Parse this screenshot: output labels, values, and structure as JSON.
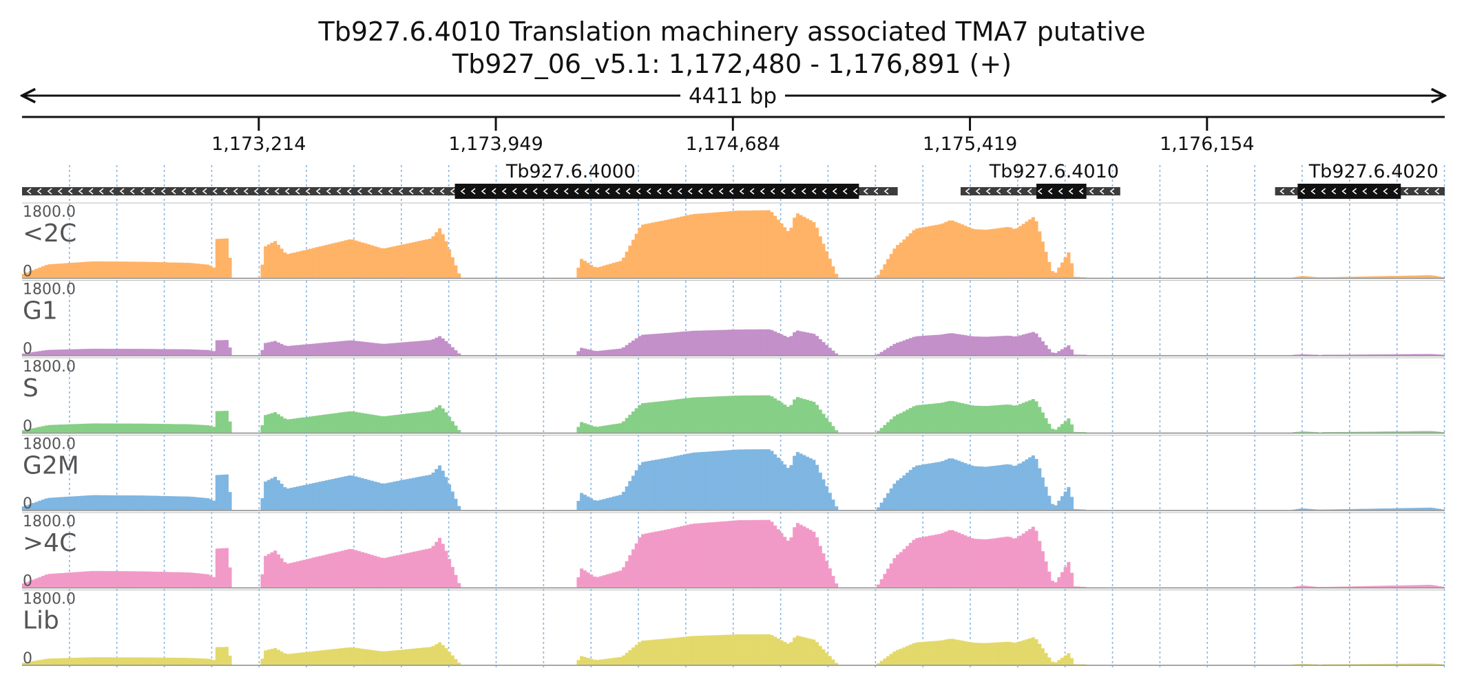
{
  "header": {
    "title": "Tb927.6.4010  Translation machinery associated TMA7  putative",
    "subtitle": "Tb927_06_v5.1: 1,172,480 - 1,176,891 (+)"
  },
  "colors": {
    "axis": "#111111",
    "grid": "#6fa8dc",
    "utr": "#3c3c3c",
    "cds": "#111111",
    "clip": "#d62728",
    "track_label": "#555555"
  },
  "chart_data": {
    "type": "area",
    "title": "Tb927.6.4010  Translation machinery associated TMA7  putative",
    "subtitle": "Tb927_06_v5.1: 1,172,480 - 1,176,891 (+)",
    "chromosome": "Tb927_06_v5.1",
    "strand": "+",
    "region": {
      "start": 1172480,
      "end": 1176891
    },
    "span_label": "4411 bp",
    "xticks": [
      1173214,
      1173949,
      1174684,
      1175419,
      1176154
    ],
    "xtick_labels": [
      "1,173,214",
      "1,173,949",
      "1,174,684",
      "1,175,419",
      "1,176,154"
    ],
    "grid": true,
    "grid_spacing_bp": 147,
    "genes": [
      {
        "name": "Tb927.6.4000",
        "show_label": true,
        "strand": "-",
        "start": 1172480,
        "end": 1175195,
        "cds_start": 1173822,
        "cds_end": 1175075
      },
      {
        "name": "Tb927.6.4010",
        "show_label": true,
        "strand": "-",
        "start": 1175390,
        "end": 1175885,
        "cds_start": 1175625,
        "cds_end": 1175780
      },
      {
        "name": "Tb927.6.4020",
        "show_label": true,
        "strand": "-",
        "start": 1176365,
        "end": 1176891,
        "cds_start": 1176435,
        "cds_end": 1176755
      }
    ],
    "ylim": [
      0,
      1800
    ],
    "ymax_label": "1800.0",
    "ymin_label": "0",
    "tracks": [
      {
        "name": "<2C",
        "color": "#ffb366",
        "scale": 1.0
      },
      {
        "name": "G1",
        "color": "#c390c9",
        "scale": 0.38
      },
      {
        "name": "S",
        "color": "#86cf86",
        "scale": 0.55
      },
      {
        "name": "G2M",
        "color": "#7fb6e2",
        "scale": 0.9
      },
      {
        "name": ">4C",
        "color": "#f29ac7",
        "scale": 1.0
      },
      {
        "name": "Lib",
        "color": "#e3d96b",
        "scale": 0.45
      }
    ],
    "coverage_profile": {
      "x": [
        1172480,
        1172560,
        1172700,
        1172850,
        1173000,
        1173060,
        1173075,
        1173080,
        1173120,
        1173130,
        1173220,
        1173232,
        1173265,
        1173300,
        1173500,
        1173600,
        1173750,
        1173775,
        1173790,
        1173840,
        1174200,
        1174210,
        1174260,
        1174340,
        1174400,
        1174480,
        1174560,
        1174640,
        1174700,
        1174800,
        1174860,
        1174880,
        1174940,
        1174950,
        1175010,
        1175130,
        1175190,
        1175200,
        1175250,
        1175330,
        1175360,
        1175430,
        1175470,
        1175540,
        1175560,
        1175620,
        1175650,
        1175670,
        1175680,
        1175730,
        1175740,
        1175780,
        1175900,
        1175980,
        1176100,
        1176150,
        1176350,
        1176420,
        1176450,
        1176500,
        1176850,
        1176891
      ],
      "y": [
        80,
        340,
        420,
        410,
        380,
        330,
        260,
        1000,
        1020,
        0,
        0,
        800,
        950,
        600,
        1000,
        750,
        1020,
        1280,
        1050,
        0,
        0,
        510,
        250,
        440,
        1370,
        1500,
        1650,
        1700,
        1740,
        1750,
        1160,
        1690,
        1420,
        1170,
        0,
        0,
        820,
        870,
        1270,
        1390,
        1500,
        1260,
        1240,
        1320,
        1250,
        1600,
        800,
        270,
        60,
        720,
        20,
        0,
        0,
        0,
        0,
        0,
        0,
        0,
        40,
        0,
        60,
        0
      ]
    }
  }
}
